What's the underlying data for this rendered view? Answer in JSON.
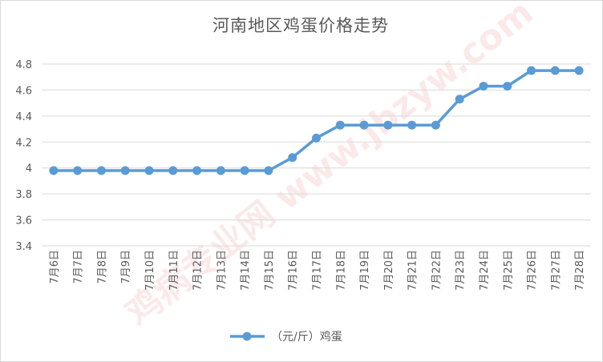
{
  "chart_data": {
    "type": "line",
    "title": "河南地区鸡蛋价格走势",
    "xlabel": "",
    "ylabel": "",
    "ylim": [
      3.4,
      4.8
    ],
    "y_ticks": [
      "4.8",
      "4.6",
      "4.4",
      "4.2",
      "4",
      "3.8",
      "3.6",
      "3.4"
    ],
    "grid": true,
    "legend_position": "bottom",
    "series_color": "#5b9bd5",
    "categories": [
      "7月6日",
      "7月7日",
      "7月8日",
      "7月9日",
      "7月10日",
      "7月11日",
      "7月12日",
      "7月13日",
      "7月14日",
      "7月15日",
      "7月16日",
      "7月17日",
      "7月18日",
      "7月19日",
      "7月20日",
      "7月21日",
      "7月22日",
      "7月23日",
      "7月24日",
      "7月25日",
      "7月26日",
      "7月27日",
      "7月28日"
    ],
    "series": [
      {
        "name": "（元/斤）鸡蛋",
        "values": [
          3.98,
          3.98,
          3.98,
          3.98,
          3.98,
          3.98,
          3.98,
          3.98,
          3.98,
          3.98,
          4.08,
          4.23,
          4.33,
          4.33,
          4.33,
          4.33,
          4.33,
          4.53,
          4.63,
          4.63,
          4.75,
          4.75,
          4.75
        ]
      }
    ],
    "watermark": "鸡病专业网 www.jbzyw.com"
  }
}
